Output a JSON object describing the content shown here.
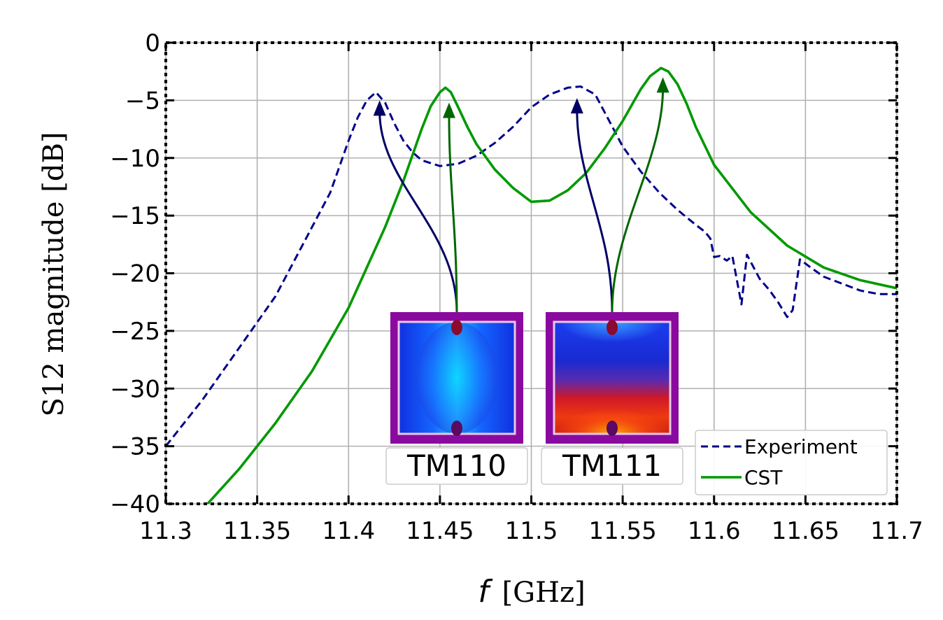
{
  "chart_data": {
    "type": "line",
    "xlabel_symbol": "f",
    "xlabel_unit": "[GHz]",
    "ylabel": "S12 magnitude [dB]",
    "xlim": [
      11.3,
      11.7
    ],
    "ylim": [
      -40,
      0
    ],
    "xticks": [
      11.3,
      11.35,
      11.4,
      11.45,
      11.5,
      11.55,
      11.6,
      11.65,
      11.7
    ],
    "xtick_labels": [
      "11.3",
      "11.35",
      "11.4",
      "11.45",
      "11.5",
      "11.55",
      "11.6",
      "11.65",
      "11.7"
    ],
    "yticks": [
      0,
      -5,
      -10,
      -15,
      -20,
      -25,
      -30,
      -35,
      -40
    ],
    "ytick_labels": [
      "0",
      "−5",
      "−10",
      "−15",
      "−20",
      "−25",
      "−30",
      "−35",
      "−40"
    ],
    "grid": true,
    "legend_position": "bottom-right",
    "series": [
      {
        "name": "Experiment",
        "color": "#00008b",
        "style": "dashed",
        "x": [
          11.3,
          11.32,
          11.34,
          11.36,
          11.37,
          11.38,
          11.39,
          11.4,
          11.405,
          11.41,
          11.415,
          11.42,
          11.425,
          11.43,
          11.435,
          11.44,
          11.45,
          11.46,
          11.47,
          11.48,
          11.49,
          11.5,
          11.51,
          11.52,
          11.527,
          11.535,
          11.54,
          11.545,
          11.55,
          11.56,
          11.57,
          11.58,
          11.59,
          11.595,
          11.598,
          11.6,
          11.603,
          11.607,
          11.61,
          11.615,
          11.618,
          11.62,
          11.625,
          11.63,
          11.635,
          11.64,
          11.643,
          11.647,
          11.652,
          11.66,
          11.67,
          11.68,
          11.69,
          11.7
        ],
        "y": [
          -35,
          -31,
          -26.5,
          -22,
          -19,
          -16,
          -13,
          -8.5,
          -6.5,
          -5,
          -4.3,
          -5.2,
          -7,
          -8.5,
          -9.5,
          -10.2,
          -10.7,
          -10.5,
          -9.8,
          -8.7,
          -7.3,
          -5.6,
          -4.5,
          -3.9,
          -3.8,
          -4.5,
          -6,
          -7.5,
          -9,
          -11.2,
          -13,
          -14.5,
          -15.8,
          -16.4,
          -17,
          -18.6,
          -18.5,
          -18.9,
          -18.5,
          -22.7,
          -18.4,
          -19,
          -20.5,
          -21.4,
          -22.5,
          -23.8,
          -23.2,
          -18.8,
          -19.4,
          -20.3,
          -20.9,
          -21.5,
          -21.8,
          -21.8
        ]
      },
      {
        "name": "CST",
        "color": "#009900",
        "style": "solid",
        "x": [
          11.3,
          11.32,
          11.34,
          11.36,
          11.38,
          11.4,
          11.42,
          11.43,
          11.44,
          11.445,
          11.45,
          11.453,
          11.456,
          11.46,
          11.465,
          11.47,
          11.48,
          11.49,
          11.5,
          11.51,
          11.52,
          11.53,
          11.54,
          11.55,
          11.56,
          11.565,
          11.571,
          11.575,
          11.58,
          11.585,
          11.59,
          11.6,
          11.62,
          11.64,
          11.66,
          11.68,
          11.7
        ],
        "y": [
          -44,
          -40.5,
          -37,
          -33,
          -28.5,
          -23,
          -16,
          -12,
          -7.5,
          -5.5,
          -4.3,
          -3.9,
          -4.3,
          -5.6,
          -7.3,
          -8.8,
          -11,
          -12.6,
          -13.8,
          -13.7,
          -12.8,
          -11.3,
          -9.2,
          -6.8,
          -4,
          -2.9,
          -2.2,
          -2.5,
          -3.6,
          -5.3,
          -7.3,
          -10.6,
          -14.7,
          -17.6,
          -19.5,
          -20.6,
          -21.3
        ]
      }
    ],
    "insets": [
      {
        "label": "TM110",
        "mode": "TM110"
      },
      {
        "label": "TM111",
        "mode": "TM111"
      }
    ],
    "annotations": [
      {
        "from_inset": 0,
        "to": [
          11.417,
          -5
        ],
        "color": "#000066"
      },
      {
        "from_inset": 0,
        "to": [
          11.455,
          -5.2
        ],
        "color": "#006600"
      },
      {
        "from_inset": 1,
        "to": [
          11.525,
          -4.8
        ],
        "color": "#000066"
      },
      {
        "from_inset": 1,
        "to": [
          11.572,
          -3
        ],
        "color": "#006600"
      }
    ]
  }
}
